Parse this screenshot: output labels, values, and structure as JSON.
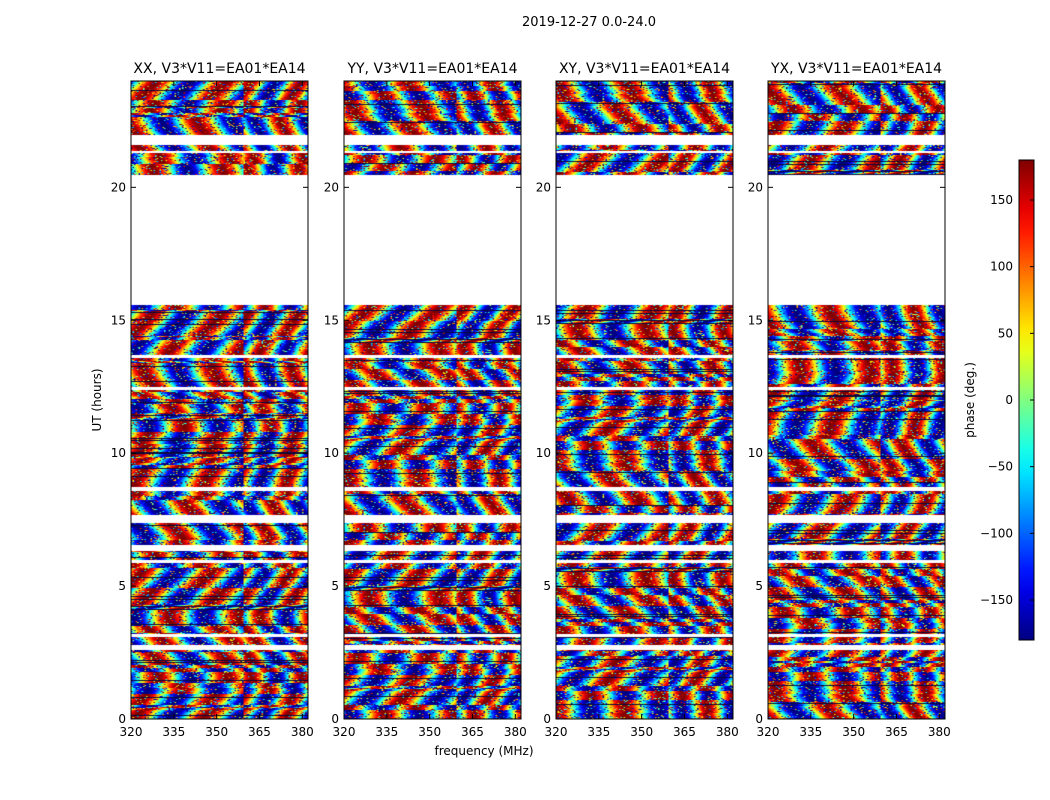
{
  "figure_title": "2019-12-27 0.0-24.0",
  "x_label": "frequency (MHz)",
  "y_label": "UT (hours)",
  "colorbar_label": "phase (deg.)",
  "chart_data": {
    "type": "heatmap",
    "title": "2019-12-27 0.0-24.0",
    "xlabel": "frequency (MHz)",
    "ylabel": "UT (hours)",
    "xlim": [
      320,
      382
    ],
    "ylim": [
      0,
      24
    ],
    "x_ticks": [
      320,
      335,
      350,
      365,
      380
    ],
    "y_ticks": [
      0,
      5,
      10,
      15,
      20
    ],
    "colormap": "jet",
    "colorbar": {
      "label": "phase (deg.)",
      "range": [
        -180,
        180
      ],
      "ticks": [
        -150,
        -100,
        -50,
        0,
        50,
        100,
        150
      ]
    },
    "panels": [
      {
        "title": "XX, V3*V11=EA01*EA14",
        "hue_bias": -0.25
      },
      {
        "title": "YY, V3*V11=EA01*EA14",
        "hue_bias": 0.15
      },
      {
        "title": "XY, V3*V11=EA01*EA14",
        "hue_bias": 0.3
      },
      {
        "title": "YX, V3*V11=EA01*EA14",
        "hue_bias": 0.05
      }
    ],
    "data_blocks_ut": [
      [
        0,
        2.6
      ],
      [
        2.8,
        3.1
      ],
      [
        3.2,
        5.9
      ],
      [
        6.0,
        6.35
      ],
      [
        6.55,
        7.4
      ],
      [
        7.7,
        8.6
      ],
      [
        8.75,
        12.4
      ],
      [
        12.5,
        13.6
      ],
      [
        13.7,
        15.6
      ],
      [
        20.5,
        21.3
      ],
      [
        21.4,
        21.6
      ],
      [
        22.0,
        24.0
      ]
    ],
    "empty_ut_range": [
      15.6,
      20.5
    ]
  }
}
